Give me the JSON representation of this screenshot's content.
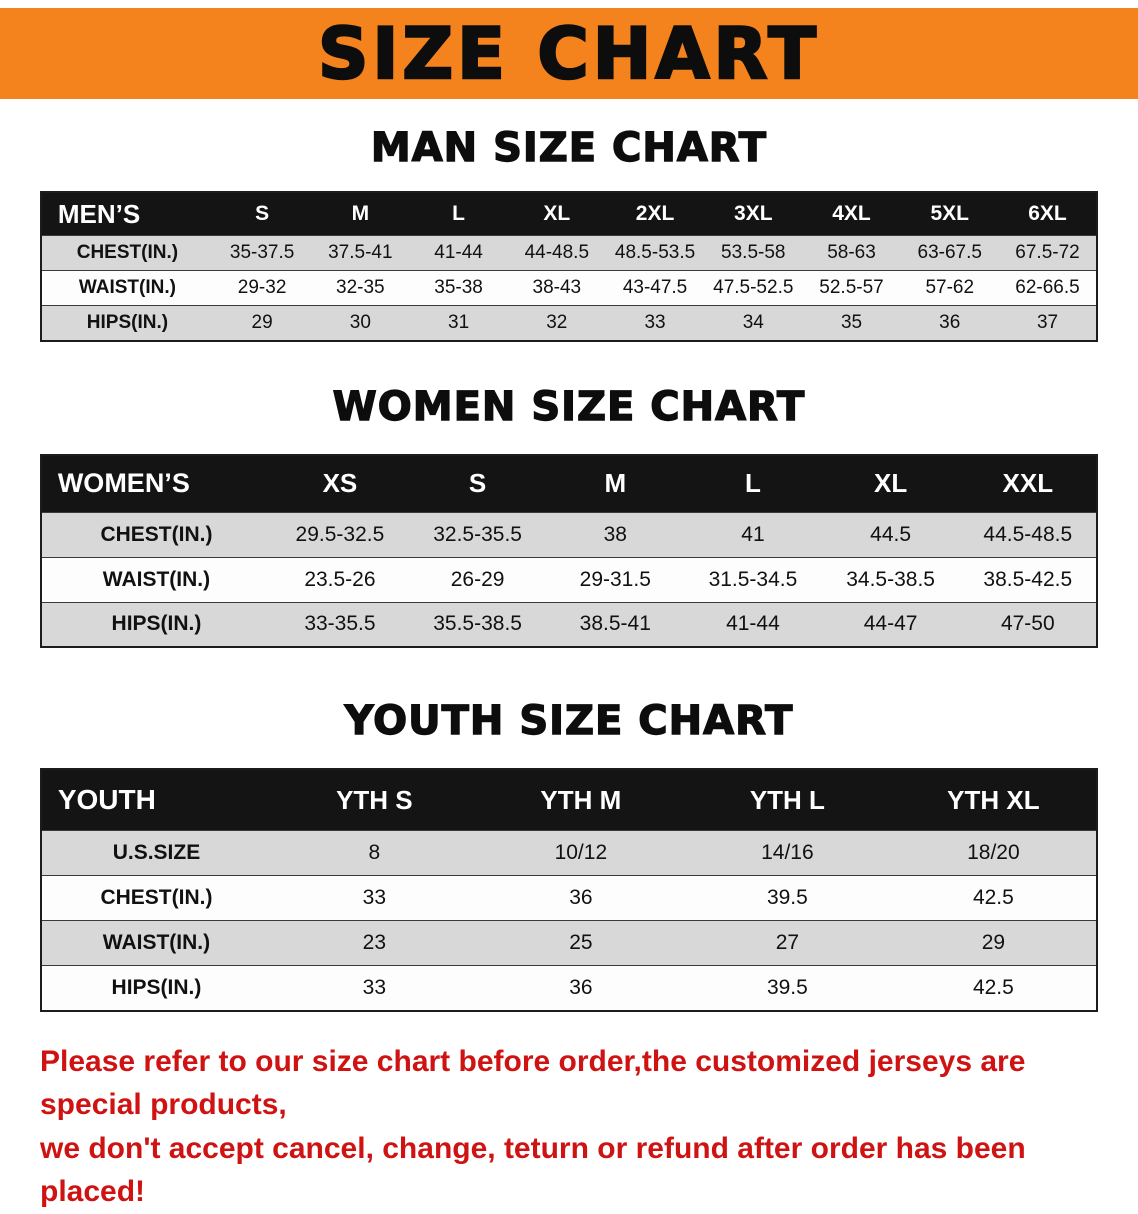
{
  "banner": {
    "title": "SIZE CHART"
  },
  "colors": {
    "banner_bg": "#f5831d",
    "header_bg": "#141414",
    "row_alt": "#d8d8d8",
    "footer_text": "#cf1212"
  },
  "sections": [
    {
      "id": "men",
      "title": "MAN SIZE CHART",
      "table": {
        "header": [
          "MEN’S",
          "S",
          "M",
          "L",
          "XL",
          "2XL",
          "3XL",
          "4XL",
          "5XL",
          "6XL"
        ],
        "rows": [
          [
            "CHEST(IN.)",
            "35-37.5",
            "37.5-41",
            "41-44",
            "44-48.5",
            "48.5-53.5",
            "53.5-58",
            "58-63",
            "63-67.5",
            "67.5-72"
          ],
          [
            "WAIST(IN.)",
            "29-32",
            "32-35",
            "35-38",
            "38-43",
            "43-47.5",
            "47.5-52.5",
            "52.5-57",
            "57-62",
            "62-66.5"
          ],
          [
            "HIPS(IN.)",
            "29",
            "30",
            "31",
            "32",
            "33",
            "34",
            "35",
            "36",
            "37"
          ]
        ]
      }
    },
    {
      "id": "women",
      "title": "WOMEN SIZE CHART",
      "table": {
        "header": [
          "WOMEN’S",
          "XS",
          "S",
          "M",
          "L",
          "XL",
          "XXL"
        ],
        "rows": [
          [
            "CHEST(IN.)",
            "29.5-32.5",
            "32.5-35.5",
            "38",
            "41",
            "44.5",
            "44.5-48.5"
          ],
          [
            "WAIST(IN.)",
            "23.5-26",
            "26-29",
            "29-31.5",
            "31.5-34.5",
            "34.5-38.5",
            "38.5-42.5"
          ],
          [
            "HIPS(IN.)",
            "33-35.5",
            "35.5-38.5",
            "38.5-41",
            "41-44",
            "44-47",
            "47-50"
          ]
        ]
      }
    },
    {
      "id": "youth",
      "title": "YOUTH SIZE CHART",
      "table": {
        "header": [
          "YOUTH",
          "YTH S",
          "YTH M",
          "YTH L",
          "YTH XL"
        ],
        "rows": [
          [
            "U.S.SIZE",
            "8",
            "10/12",
            "14/16",
            "18/20"
          ],
          [
            "CHEST(IN.)",
            "33",
            "36",
            "39.5",
            "42.5"
          ],
          [
            "WAIST(IN.)",
            "23",
            "25",
            "27",
            "29"
          ],
          [
            "HIPS(IN.)",
            "33",
            "36",
            "39.5",
            "42.5"
          ]
        ]
      }
    }
  ],
  "footer": {
    "line1": "Please refer to our size chart before order,the customized jerseys are special products,",
    "line2": "we don't accept cancel, change, teturn or refund after order has been placed!"
  }
}
